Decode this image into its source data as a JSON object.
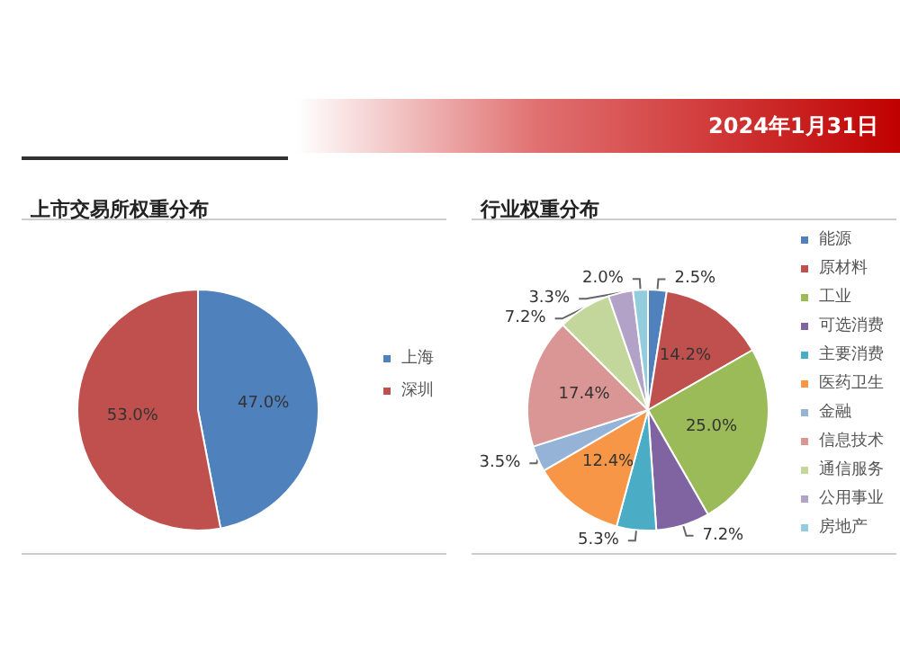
{
  "chart_data": [
    {
      "type": "pie",
      "title": "上市交易所权重分布",
      "subtitle": "2024年1月31日",
      "categories": [
        "上海",
        "深圳"
      ],
      "values": [
        47.0,
        53.0
      ],
      "colors": [
        "#4f81bd",
        "#c0504d"
      ],
      "value_labels": [
        "47.0%",
        "53.0%"
      ],
      "legend": "right"
    },
    {
      "type": "pie",
      "title": "行业权重分布",
      "categories": [
        "能源",
        "原材料",
        "工业",
        "可选消费",
        "主要消费",
        "医药卫生",
        "金融",
        "信息技术",
        "通信服务",
        "公用事业",
        "房地产"
      ],
      "values": [
        2.5,
        14.2,
        25.0,
        7.2,
        5.3,
        12.4,
        3.5,
        17.4,
        7.2,
        3.3,
        2.0
      ],
      "colors": [
        "#4f81bd",
        "#c0504d",
        "#9bbb59",
        "#8064a2",
        "#4bacc6",
        "#f79646",
        "#95b3d7",
        "#d99694",
        "#c3d69b",
        "#b3a2c7",
        "#93cddd"
      ],
      "value_labels": [
        "2.5%",
        "14.2%",
        "25.0%",
        "7.2%",
        "5.3%",
        "12.4%",
        "3.5%",
        "17.4%",
        "7.2%",
        "3.3%",
        "2.0%"
      ],
      "legend": "right"
    }
  ]
}
